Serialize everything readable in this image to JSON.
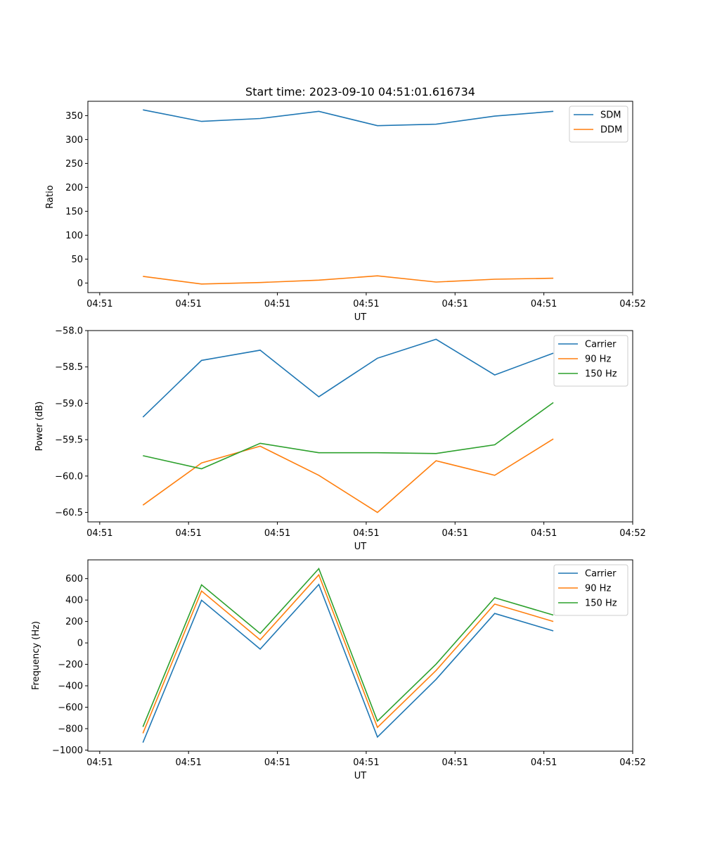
{
  "figure_title": "Start time: 2023-09-10 04:51:01.616734",
  "colors": {
    "blue": "#1f77b4",
    "orange": "#ff7f0e",
    "green": "#2ca02c"
  },
  "chart_data": [
    {
      "type": "line",
      "title": "Start time: 2023-09-10 04:51:01.616734",
      "xlabel": "UT",
      "ylabel": "Ratio",
      "xlim": [
        0,
        9.2
      ],
      "ylim": [
        -20,
        380
      ],
      "xticks": [
        0.2,
        1.7,
        3.2,
        4.7,
        6.2,
        7.7,
        9.2
      ],
      "xticklabels": [
        "04:51",
        "04:51",
        "04:51",
        "04:51",
        "04:51",
        "04:51",
        "04:52"
      ],
      "yticks": [
        0,
        50,
        100,
        150,
        200,
        250,
        300,
        350
      ],
      "yticklabels": [
        "0",
        "50",
        "100",
        "150",
        "200",
        "250",
        "300",
        "350"
      ],
      "legend": "upper right",
      "x": [
        0.93,
        1.92,
        2.91,
        3.9,
        4.89,
        5.88,
        6.87,
        7.86
      ],
      "series": [
        {
          "name": "SDM",
          "color": "#1f77b4",
          "values": [
            362,
            338,
            344,
            359,
            329,
            332,
            349,
            359
          ]
        },
        {
          "name": "DDM",
          "color": "#ff7f0e",
          "values": [
            14,
            -2,
            1,
            6,
            15,
            2,
            8,
            10
          ]
        }
      ]
    },
    {
      "type": "line",
      "title": "",
      "xlabel": "UT",
      "ylabel": "Power (dB)",
      "xlim": [
        0,
        9.2
      ],
      "ylim": [
        -60.63,
        -58.0
      ],
      "xticks": [
        0.2,
        1.7,
        3.2,
        4.7,
        6.2,
        7.7,
        9.2
      ],
      "xticklabels": [
        "04:51",
        "04:51",
        "04:51",
        "04:51",
        "04:51",
        "04:51",
        "04:52"
      ],
      "yticks": [
        -60.5,
        -60.0,
        -59.5,
        -59.0,
        -58.5,
        -58.0
      ],
      "yticklabels": [
        "−60.5",
        "−60.0",
        "−59.5",
        "−59.0",
        "−58.5",
        "−58.0"
      ],
      "legend": "upper right",
      "x": [
        0.93,
        1.92,
        2.91,
        3.9,
        4.89,
        5.88,
        6.87,
        7.86
      ],
      "series": [
        {
          "name": "Carrier",
          "color": "#1f77b4",
          "values": [
            -59.19,
            -58.41,
            -58.27,
            -58.91,
            -58.38,
            -58.12,
            -58.61,
            -58.31
          ]
        },
        {
          "name": "90 Hz",
          "color": "#ff7f0e",
          "values": [
            -60.4,
            -59.82,
            -59.59,
            -59.99,
            -60.5,
            -59.79,
            -59.99,
            -59.49
          ]
        },
        {
          "name": "150 Hz",
          "color": "#2ca02c",
          "values": [
            -59.72,
            -59.9,
            -59.55,
            -59.68,
            -59.68,
            -59.69,
            -59.57,
            -58.99
          ]
        }
      ]
    },
    {
      "type": "line",
      "title": "",
      "xlabel": "UT",
      "ylabel": "Frequency (Hz)",
      "xlim": [
        0,
        9.2
      ],
      "ylim": [
        -1010,
        775
      ],
      "xticks": [
        0.2,
        1.7,
        3.2,
        4.7,
        6.2,
        7.7,
        9.2
      ],
      "xticklabels": [
        "04:51",
        "04:51",
        "04:51",
        "04:51",
        "04:51",
        "04:51",
        "04:52"
      ],
      "yticks": [
        -1000,
        -800,
        -600,
        -400,
        -200,
        0,
        200,
        400,
        600
      ],
      "yticklabels": [
        "−1000",
        "−800",
        "−600",
        "−400",
        "−200",
        "0",
        "200",
        "400",
        "600"
      ],
      "legend": "upper right",
      "x": [
        0.93,
        1.92,
        2.91,
        3.9,
        4.89,
        5.88,
        6.87,
        7.86
      ],
      "series": [
        {
          "name": "Carrier",
          "color": "#1f77b4",
          "values": [
            -930,
            398,
            -58,
            545,
            -878,
            -340,
            275,
            112
          ]
        },
        {
          "name": "90 Hz",
          "color": "#ff7f0e",
          "values": [
            -843,
            484,
            28,
            635,
            -788,
            -257,
            362,
            200
          ]
        },
        {
          "name": "150 Hz",
          "color": "#2ca02c",
          "values": [
            -783,
            542,
            88,
            693,
            -729,
            -198,
            421,
            260
          ]
        }
      ]
    }
  ]
}
